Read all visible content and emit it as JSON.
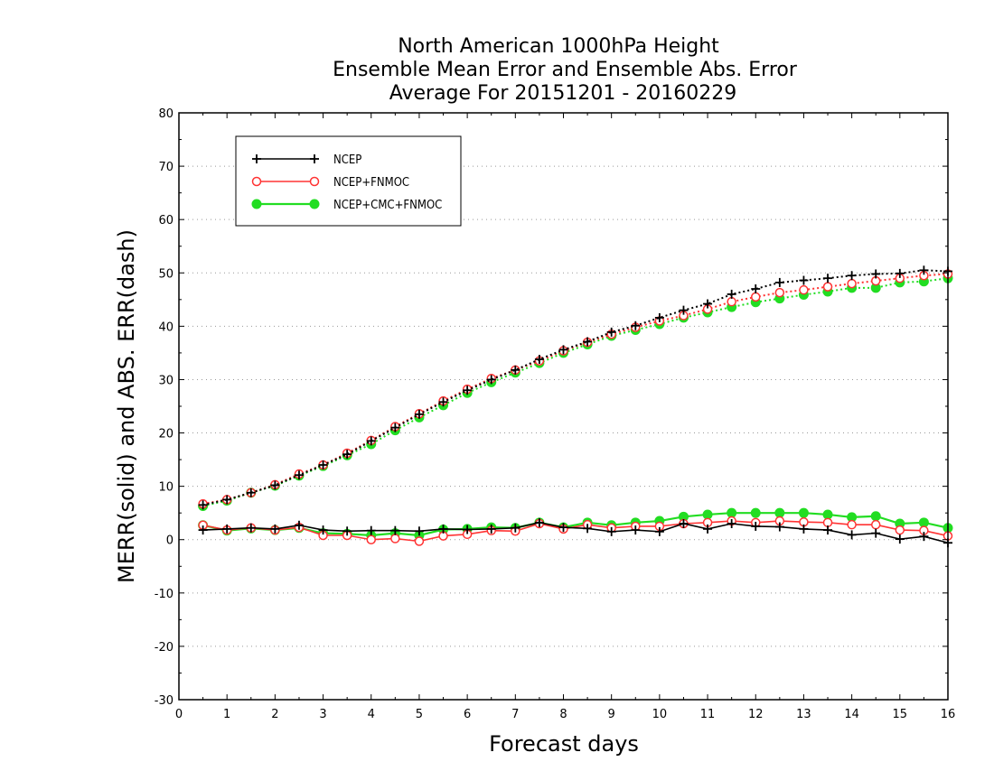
{
  "chart_data": {
    "type": "line",
    "title": [
      "North American 1000hPa Height",
      "Ensemble Mean Error and Ensemble Abs. Error",
      "Average For 20151201 - 20160229"
    ],
    "xlabel": "Forecast days",
    "ylabel": "MERR(solid) and ABS. ERR(dash)",
    "xlim": [
      0,
      16
    ],
    "ylim": [
      -30,
      80
    ],
    "xticks": [
      0,
      1,
      2,
      3,
      4,
      5,
      6,
      7,
      8,
      9,
      10,
      11,
      12,
      13,
      14,
      15,
      16
    ],
    "yticks": [
      -30,
      -20,
      -10,
      0,
      10,
      20,
      30,
      40,
      50,
      60,
      70,
      80
    ],
    "grid": "horizontal dotted",
    "legend_position": "top-left",
    "x": [
      0.5,
      1,
      1.5,
      2,
      2.5,
      3,
      3.5,
      4,
      4.5,
      5,
      5.5,
      6,
      6.5,
      7,
      7.5,
      8,
      8.5,
      9,
      9.5,
      10,
      10.5,
      11,
      11.5,
      12,
      12.5,
      13,
      13.5,
      14,
      14.5,
      15,
      15.5,
      16
    ],
    "series": [
      {
        "name": "NCEP",
        "color": "#000000",
        "marker": "plus",
        "merr": [
          1.8,
          2.0,
          2.2,
          2.0,
          2.7,
          1.8,
          1.6,
          1.7,
          1.7,
          1.6,
          2.0,
          1.9,
          2.0,
          2.2,
          3.2,
          2.3,
          2.1,
          1.5,
          1.8,
          1.5,
          3.0,
          2.0,
          3.0,
          2.5,
          2.4,
          2.0,
          1.8,
          0.9,
          1.2,
          0.1,
          0.6,
          -0.6
        ],
        "abs_err": [
          6.5,
          7.5,
          8.8,
          10.2,
          12.1,
          14.0,
          16.0,
          18.5,
          21.0,
          23.5,
          25.8,
          28.0,
          30.0,
          31.8,
          33.8,
          35.6,
          37.1,
          38.9,
          40.1,
          41.6,
          43.0,
          44.2,
          46.0,
          47.0,
          48.2,
          48.6,
          49.0,
          49.5,
          49.8,
          49.9,
          50.5,
          50.3
        ]
      },
      {
        "name": "NCEP+FNMOC",
        "color": "#ff3333",
        "marker": "open-circle",
        "merr": [
          2.7,
          1.8,
          2.2,
          1.8,
          2.3,
          0.8,
          0.8,
          0.0,
          0.2,
          -0.3,
          0.7,
          1.0,
          1.7,
          1.6,
          3.0,
          2.0,
          2.8,
          2.2,
          2.5,
          2.5,
          3.0,
          3.2,
          3.5,
          3.2,
          3.5,
          3.3,
          3.2,
          2.8,
          2.8,
          1.8,
          1.7,
          0.7
        ],
        "abs_err": [
          6.7,
          7.5,
          8.8,
          10.3,
          12.3,
          14.0,
          16.2,
          18.6,
          21.2,
          23.6,
          26.0,
          28.2,
          30.2,
          31.8,
          33.5,
          35.4,
          37.0,
          38.5,
          39.8,
          41.0,
          42.0,
          43.2,
          44.6,
          45.5,
          46.3,
          46.8,
          47.4,
          48.0,
          48.5,
          49.0,
          49.5,
          49.8
        ]
      },
      {
        "name": "NCEP+CMC+FNMOC",
        "color": "#22dd22",
        "marker": "filled-circle",
        "merr": [
          2.7,
          1.7,
          2.1,
          1.8,
          2.2,
          1.2,
          1.1,
          0.8,
          1.2,
          0.8,
          1.9,
          2.0,
          2.3,
          2.2,
          3.2,
          2.3,
          3.2,
          2.7,
          3.2,
          3.5,
          4.3,
          4.7,
          5.0,
          5.0,
          5.0,
          5.0,
          4.7,
          4.2,
          4.4,
          3.0,
          3.2,
          2.2
        ],
        "abs_err": [
          6.3,
          7.3,
          8.8,
          10.1,
          12.0,
          13.8,
          15.8,
          17.9,
          20.5,
          22.9,
          25.2,
          27.5,
          29.5,
          31.3,
          33.1,
          35.0,
          36.6,
          38.2,
          39.3,
          40.4,
          41.6,
          42.6,
          43.6,
          44.5,
          45.2,
          45.9,
          46.5,
          47.2,
          47.2,
          48.2,
          48.4,
          49.0
        ]
      }
    ]
  }
}
